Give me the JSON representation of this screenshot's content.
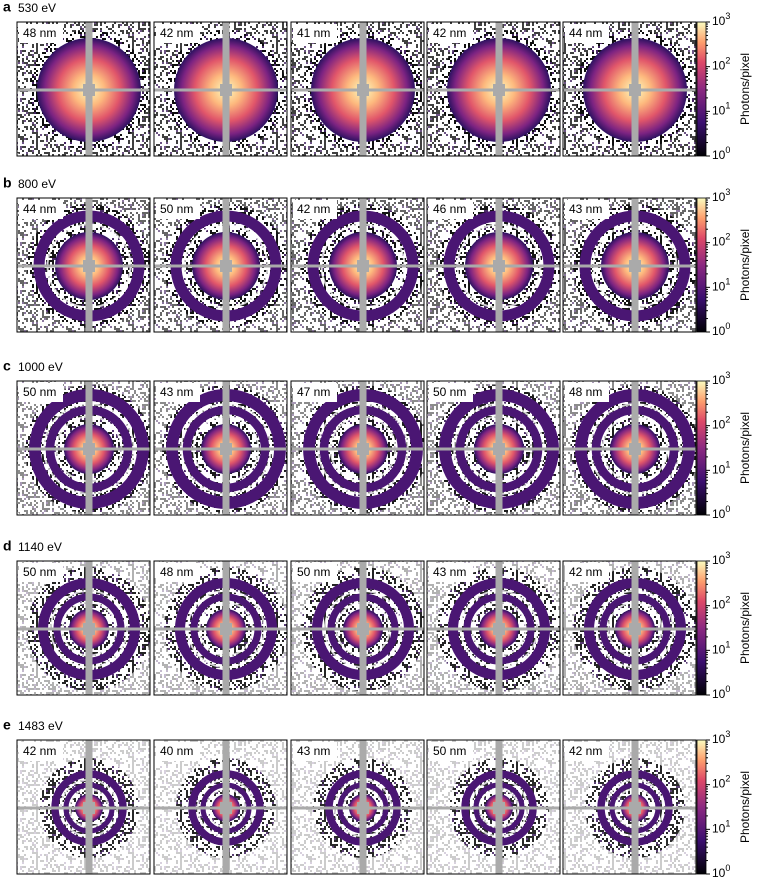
{
  "figure": {
    "rows": [
      {
        "letter": "a",
        "energy": "530 eV",
        "sizes": [
          "48 nm",
          "42 nm",
          "41 nm",
          "42 nm",
          "44 nm"
        ]
      },
      {
        "letter": "b",
        "energy": "800 eV",
        "sizes": [
          "44 nm",
          "50 nm",
          "42 nm",
          "46 nm",
          "43 nm"
        ]
      },
      {
        "letter": "c",
        "energy": "1000 eV",
        "sizes": [
          "50 nm",
          "43 nm",
          "47 nm",
          "50 nm",
          "48 nm"
        ]
      },
      {
        "letter": "d",
        "energy": "1140 eV",
        "sizes": [
          "50 nm",
          "48 nm",
          "50 nm",
          "43 nm",
          "42 nm"
        ]
      },
      {
        "letter": "e",
        "energy": "1483 eV",
        "sizes": [
          "42 nm",
          "40 nm",
          "43 nm",
          "50 nm",
          "42 nm"
        ]
      }
    ],
    "colorbar": {
      "label": "Photons/pixel",
      "ticks": [
        {
          "base": "10",
          "exponent": "0"
        },
        {
          "base": "10",
          "exponent": "1"
        },
        {
          "base": "10",
          "exponent": "2"
        },
        {
          "base": "10",
          "exponent": "3"
        }
      ]
    }
  }
}
